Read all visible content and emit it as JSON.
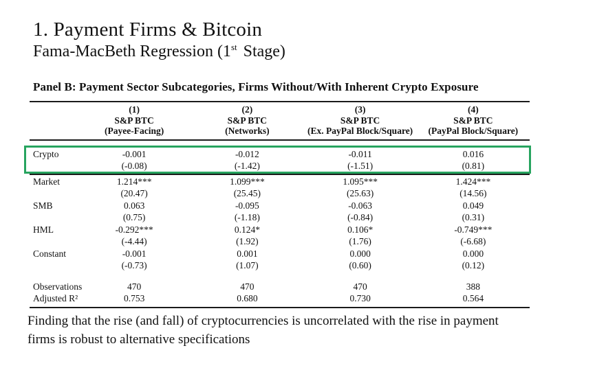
{
  "slide": {
    "title": "1. Payment Firms & Bitcoin",
    "subtitle_pre": "Fama-MacBeth Regression (1",
    "subtitle_sup": "st",
    "subtitle_post": " Stage)",
    "finding": "Finding that the rise (and fall) of cryptocurrencies is uncorrelated with the rise in payment firms is robust to alternative specifications"
  },
  "table": {
    "panel_title": "Panel B: Payment Sector Subcategories, Firms Without/With Inherent Crypto Exposure",
    "highlight_color": "#27A45F",
    "columns": [
      {
        "number": "(1)",
        "index": "S&P BTC",
        "subtitle": "(Payee-Facing)"
      },
      {
        "number": "(2)",
        "index": "S&P BTC",
        "subtitle": "(Networks)"
      },
      {
        "number": "(3)",
        "index": "S&P BTC",
        "subtitle": "(Ex. PayPal Block/Square)"
      },
      {
        "number": "(4)",
        "index": "S&P BTC",
        "subtitle": "(PayPal Block/Square)"
      }
    ],
    "rows": [
      {
        "label": "Crypto",
        "highlight": true,
        "coefficients": [
          "-0.001",
          "-0.012",
          "-0.011",
          "0.016"
        ],
        "t_stats": [
          "(-0.08)",
          "(-1.42)",
          "(-1.51)",
          "(0.81)"
        ]
      },
      {
        "label": "Market",
        "highlight": false,
        "coefficients": [
          "1.214***",
          "1.099***",
          "1.095***",
          "1.424***"
        ],
        "t_stats": [
          "(20.47)",
          "(25.45)",
          "(25.63)",
          "(14.56)"
        ]
      },
      {
        "label": "SMB",
        "highlight": false,
        "coefficients": [
          "0.063",
          "-0.095",
          "-0.063",
          "0.049"
        ],
        "t_stats": [
          "(0.75)",
          "(-1.18)",
          "(-0.84)",
          "(0.31)"
        ]
      },
      {
        "label": "HML",
        "highlight": false,
        "coefficients": [
          "-0.292***",
          "0.124*",
          "0.106*",
          "-0.749***"
        ],
        "t_stats": [
          "(-4.44)",
          "(1.92)",
          "(1.76)",
          "(-6.68)"
        ]
      },
      {
        "label": "Constant",
        "highlight": false,
        "coefficients": [
          "-0.001",
          "0.001",
          "0.000",
          "0.000"
        ],
        "t_stats": [
          "(-0.73)",
          "(1.07)",
          "(0.60)",
          "(0.12)"
        ]
      }
    ],
    "stats": [
      {
        "label": "Observations",
        "values": [
          "470",
          "470",
          "470",
          "388"
        ]
      },
      {
        "label": "Adjusted R²",
        "values": [
          "0.753",
          "0.680",
          "0.730",
          "0.564"
        ]
      }
    ]
  }
}
